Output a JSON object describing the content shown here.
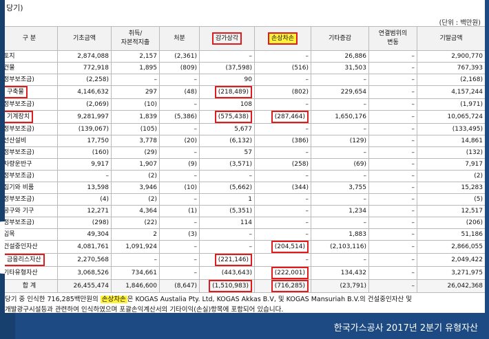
{
  "heading": "당기)",
  "unit_note": "(단위 : 백만원)",
  "table": {
    "headers": [
      "구   분",
      "기초금액",
      "취득/\n자본적지출",
      "처분",
      "감가상각",
      "손상차손",
      "기타증감",
      "연결범위의\n변동",
      "기말금액"
    ],
    "rows": [
      [
        "토지",
        "2,874,088",
        "2,157",
        "(2,361)",
        "–",
        "–",
        "26,886",
        "–",
        "2,900,770"
      ],
      [
        "건물",
        "772,918",
        "1,895",
        "(809)",
        "(37,598)",
        "(516)",
        "31,503",
        "–",
        "767,393"
      ],
      [
        "정부보조금)",
        "(2,258)",
        "–",
        "–",
        "90",
        "–",
        "–",
        "–",
        "(2,168)"
      ],
      [
        "구축물",
        "4,146,632",
        "297",
        "(48)",
        "(218,489)",
        "(802)",
        "229,654",
        "–",
        "4,157,244"
      ],
      [
        "정부보조금)",
        "(2,069)",
        "(10)",
        "–",
        "108",
        "–",
        "–",
        "–",
        "(1,971)"
      ],
      [
        "기계장치",
        "9,281,997",
        "1,839",
        "(5,386)",
        "(575,438)",
        "(287,464)",
        "1,650,176",
        "–",
        "10,065,724"
      ],
      [
        "정부보조금)",
        "(139,067)",
        "(105)",
        "–",
        "5,677",
        "–",
        "–",
        "–",
        "(133,495)"
      ],
      [
        "선산설비",
        "17,750",
        "3,778",
        "(20)",
        "(6,132)",
        "(386)",
        "(129)",
        "–",
        "14,861"
      ],
      [
        "정부보조금)",
        "(160)",
        "(29)",
        "–",
        "57",
        "–",
        "–",
        "–",
        "(132)"
      ],
      [
        "차량운반구",
        "9,917",
        "1,907",
        "(9)",
        "(3,571)",
        "(258)",
        "(69)",
        "–",
        "7,917"
      ],
      [
        "정부보조금)",
        "–",
        "(2)",
        "–",
        "–",
        "–",
        "–",
        "–",
        "(2)"
      ],
      [
        "집기와 비품",
        "13,598",
        "3,946",
        "(10)",
        "(5,662)",
        "(344)",
        "3,755",
        "–",
        "15,283"
      ],
      [
        "정부보조금)",
        "(4)",
        "(2)",
        "–",
        "1",
        "–",
        "–",
        "–",
        "(5)"
      ],
      [
        "공구와 기구",
        "12,271",
        "4,364",
        "(1)",
        "(5,351)",
        "–",
        "1,234",
        "–",
        "12,517"
      ],
      [
        "정부보조금)",
        "(298)",
        "(22)",
        "–",
        "114",
        "–",
        "–",
        "–",
        "(206)"
      ],
      [
        "입목",
        "49,304",
        "2",
        "(3)",
        "–",
        "–",
        "1,883",
        "–",
        "51,186"
      ],
      [
        "건설중인자산",
        "4,081,761",
        "1,091,924",
        "–",
        "–",
        "(204,514)",
        "(2,103,116)",
        "–",
        "2,866,055"
      ],
      [
        "금융리스자산",
        "2,270,568",
        "–",
        "–",
        "(221,146)",
        "–",
        "–",
        "–",
        "2,049,422"
      ],
      [
        "기타유형자산",
        "3,068,526",
        "734,661",
        "–",
        "(443,643)",
        "(222,001)",
        "134,432",
        "–",
        "3,271,975"
      ]
    ],
    "total": [
      "합   계",
      "26,455,474",
      "1,846,600",
      "(8,647)",
      "(1,510,983)",
      "(716,285)",
      "(23,791)",
      "–",
      "26,042,368"
    ]
  },
  "footnote": {
    "line1_before": "당기 중 인식한 716,285백만원의 ",
    "line1_mark": "손상차손",
    "line1_after": "은 KOGAS Austalia Pty. Ltd, KOGAS Akkas B.V, 및 KOGAS Mansuriah B.V.의 건설중인자산 및",
    "line2": "개발광구시설등과 관련하여 인식하였으며 포괄손익계산서의 기타이익(손실)항목에 포함되어 있습니다."
  },
  "caption": "한국가스공사 2017년 2분기 유형자산"
}
